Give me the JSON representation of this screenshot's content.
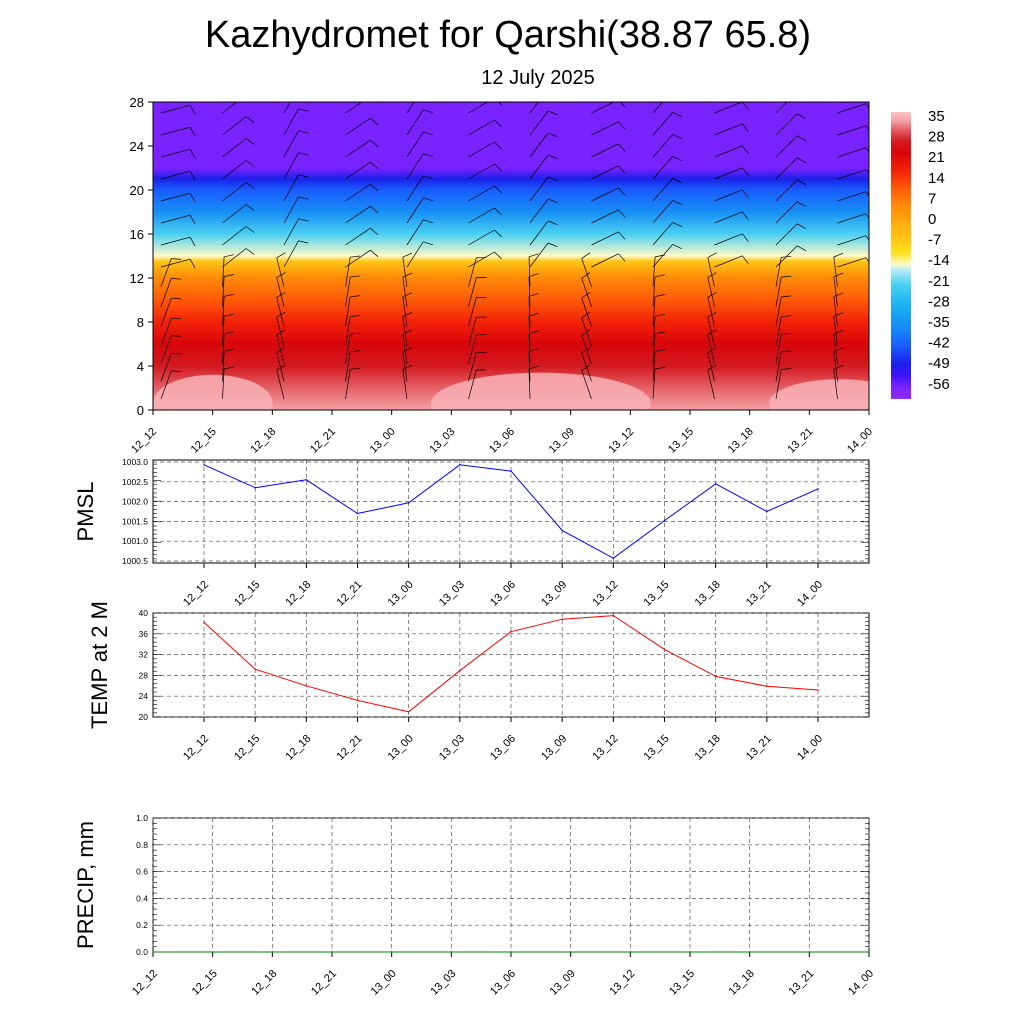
{
  "title": "Kazhydromet for Qarshi(38.87 65.8)",
  "subtitle": "12 July 2025",
  "chart_data": [
    {
      "type": "heatmap",
      "title": "",
      "xlabel": "",
      "ylabel": "",
      "x": [
        "12_12",
        "12_15",
        "12_18",
        "12_21",
        "13_00",
        "13_03",
        "13_06",
        "13_09",
        "13_12",
        "13_15",
        "13_18",
        "13_21",
        "14_00"
      ],
      "y_ticks": [
        0,
        4,
        8,
        12,
        16,
        20,
        24,
        28
      ],
      "ylim": [
        0,
        28
      ],
      "colorbar": {
        "tick_labels": [
          "35",
          "28",
          "21",
          "14",
          "7",
          "0",
          "-7",
          "-14",
          "-21",
          "-28",
          "-35",
          "-42",
          "-49",
          "-56"
        ],
        "range": [
          -60,
          38
        ]
      },
      "temperature_profile": [
        {
          "level": 0,
          "value": 34
        },
        {
          "level": 2,
          "value": 30
        },
        {
          "level": 4,
          "value": 25
        },
        {
          "level": 6,
          "value": 21
        },
        {
          "level": 8,
          "value": 16
        },
        {
          "level": 10,
          "value": 9
        },
        {
          "level": 12,
          "value": 3
        },
        {
          "level": 13.5,
          "value": -8
        },
        {
          "level": 14,
          "value": -15
        },
        {
          "level": 16,
          "value": -26
        },
        {
          "level": 18,
          "value": -36
        },
        {
          "level": 20,
          "value": -46
        },
        {
          "level": 21,
          "value": -50
        },
        {
          "level": 22,
          "value": -56
        },
        {
          "level": 24,
          "value": -60
        },
        {
          "level": 28,
          "value": -60
        }
      ],
      "wind_barbs": true,
      "grid": false
    },
    {
      "type": "line",
      "ylabel": "PMSL",
      "categories": [
        "12_12",
        "12_15",
        "12_18",
        "12_21",
        "13_00",
        "13_03",
        "13_06",
        "13_09",
        "13_12",
        "13_15",
        "13_18",
        "13_21",
        "14_00"
      ],
      "y_ticks": [
        "1000.5",
        "1001.0",
        "1001.5",
        "1002.0",
        "1002.5",
        "1003.0"
      ],
      "ylim": [
        1000.45,
        1003.05
      ],
      "series": [
        {
          "values": [
            1002.93,
            1002.35,
            1002.55,
            1001.7,
            1001.97,
            1002.93,
            1002.77,
            1001.27,
            1000.57,
            1001.52,
            1002.45,
            1001.75,
            1002.32
          ],
          "color": "#0000ff"
        }
      ],
      "grid": true
    },
    {
      "type": "line",
      "ylabel": "TEMP at 2 M",
      "categories": [
        "12_12",
        "12_15",
        "12_18",
        "12_21",
        "13_00",
        "13_03",
        "13_06",
        "13_09",
        "13_12",
        "13_15",
        "13_18",
        "13_21",
        "14_00"
      ],
      "y_ticks": [
        "20",
        "24",
        "28",
        "32",
        "36",
        "40"
      ],
      "ylim": [
        20,
        40
      ],
      "series": [
        {
          "values": [
            38.2,
            29.2,
            26.0,
            23.2,
            21.0,
            28.9,
            36.4,
            38.8,
            39.5,
            33.0,
            27.8,
            25.9,
            25.2
          ],
          "color": "#ff0000"
        }
      ],
      "grid": true
    },
    {
      "type": "line",
      "ylabel": "PRECIP, mm",
      "categories": [
        "12_12",
        "12_15",
        "12_18",
        "12_21",
        "13_00",
        "13_03",
        "13_06",
        "13_09",
        "13_12",
        "13_15",
        "13_18",
        "13_21",
        "14_00"
      ],
      "y_ticks": [
        "0.0",
        "0.2",
        "0.4",
        "0.6",
        "0.8",
        "1.0"
      ],
      "ylim": [
        0,
        1
      ],
      "series": [
        {
          "values": [
            0,
            0,
            0,
            0,
            0,
            0,
            0,
            0,
            0,
            0,
            0,
            0,
            0
          ],
          "color": "#008000"
        }
      ],
      "grid": true
    }
  ]
}
